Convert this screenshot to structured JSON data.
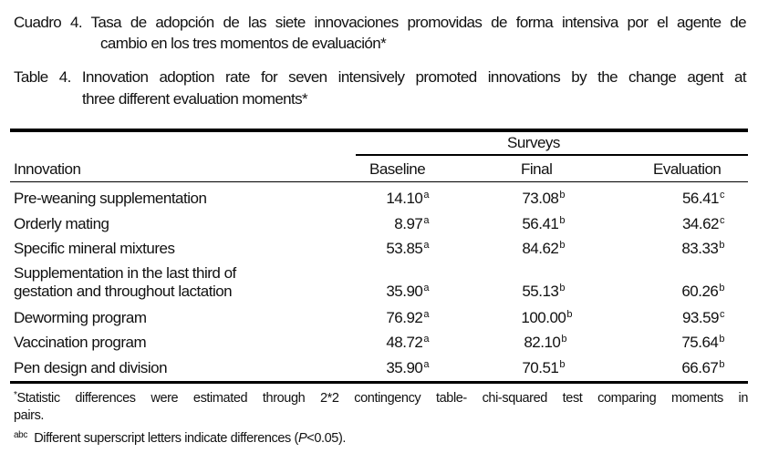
{
  "caption_es": {
    "line1": "Cuadro 4. Tasa de adopción de las siete innovaciones promovidas de forma intensiva por el agente de",
    "line2": "cambio en los tres momentos de evaluación*"
  },
  "caption_en": {
    "line1": "Table 4. Innovation adoption rate for seven intensively promoted innovations by the change agent at",
    "line2": "three different evaluation moments*"
  },
  "table": {
    "group_header": "Surveys",
    "headers": [
      "Innovation",
      "Baseline",
      "Final",
      "Evaluation"
    ],
    "rows": [
      {
        "innovation": "Pre-weaning supplementation",
        "baseline": "14.10",
        "baseline_sup": "a",
        "final": "73.08",
        "final_sup": "b",
        "evaluation": "56.41",
        "evaluation_sup": "c"
      },
      {
        "innovation": "Orderly mating",
        "baseline": "8.97",
        "baseline_sup": "a",
        "final": "56.41",
        "final_sup": "b",
        "evaluation": "34.62",
        "evaluation_sup": "c"
      },
      {
        "innovation": "Specific mineral mixtures",
        "baseline": "53.85",
        "baseline_sup": "a",
        "final": "84.62",
        "final_sup": "b",
        "evaluation": "83.33",
        "evaluation_sup": "b"
      },
      {
        "innovation_line1": "Supplementation in the last third of",
        "innovation_line2": "gestation and throughout lactation",
        "baseline": "35.90",
        "baseline_sup": "a",
        "final": "55.13",
        "final_sup": "b",
        "evaluation": "60.26",
        "evaluation_sup": "b"
      },
      {
        "innovation": "Deworming program",
        "baseline": "76.92",
        "baseline_sup": "a",
        "final": "100.00",
        "final_sup": "b",
        "evaluation": "93.59",
        "evaluation_sup": "c"
      },
      {
        "innovation": "Vaccination program",
        "baseline": "48.72",
        "baseline_sup": "a",
        "final": "82.10",
        "final_sup": "b",
        "evaluation": "75.64",
        "evaluation_sup": "b"
      },
      {
        "innovation": "Pen design and division",
        "baseline": "35.90",
        "baseline_sup": "a",
        "final": "70.51",
        "final_sup": "b",
        "evaluation": "66.67",
        "evaluation_sup": "b"
      }
    ]
  },
  "footnotes": {
    "star_mark": "*",
    "star_line1": "Statistic differences were estimated through 2*2 contingency table- chi-squared test comparing moments in",
    "star_line2": "pairs.",
    "abc_mark": "abc",
    "abc_text_pre": "Different superscript letters indicate differences (",
    "abc_italic": "P",
    "abc_text_post": "<0.05)."
  }
}
